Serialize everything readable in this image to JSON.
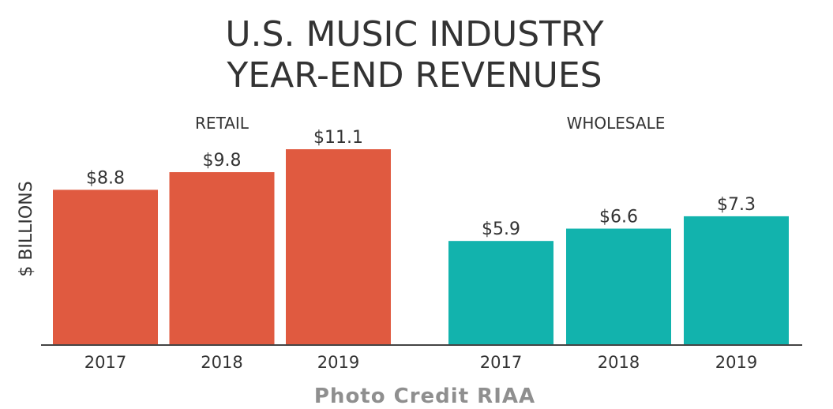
{
  "chart_data": {
    "type": "bar",
    "title_lines": [
      "U.S. MUSIC INDUSTRY",
      "YEAR-END REVENUES"
    ],
    "ylabel": "$ BILLIONS",
    "ylim": [
      0,
      11.1
    ],
    "groups": [
      {
        "name": "RETAIL",
        "color": "#e05a40",
        "categories": [
          "2017",
          "2018",
          "2019"
        ],
        "values": [
          8.8,
          9.8,
          11.1
        ],
        "value_labels": [
          "$8.8",
          "$9.8",
          "$11.1"
        ]
      },
      {
        "name": "WHOLESALE",
        "color": "#12b3ad",
        "categories": [
          "2017",
          "2018",
          "2019"
        ],
        "values": [
          5.9,
          6.6,
          7.3
        ],
        "value_labels": [
          "$5.9",
          "$6.6",
          "$7.3"
        ]
      }
    ]
  },
  "credit": "Photo Credit RIAA"
}
